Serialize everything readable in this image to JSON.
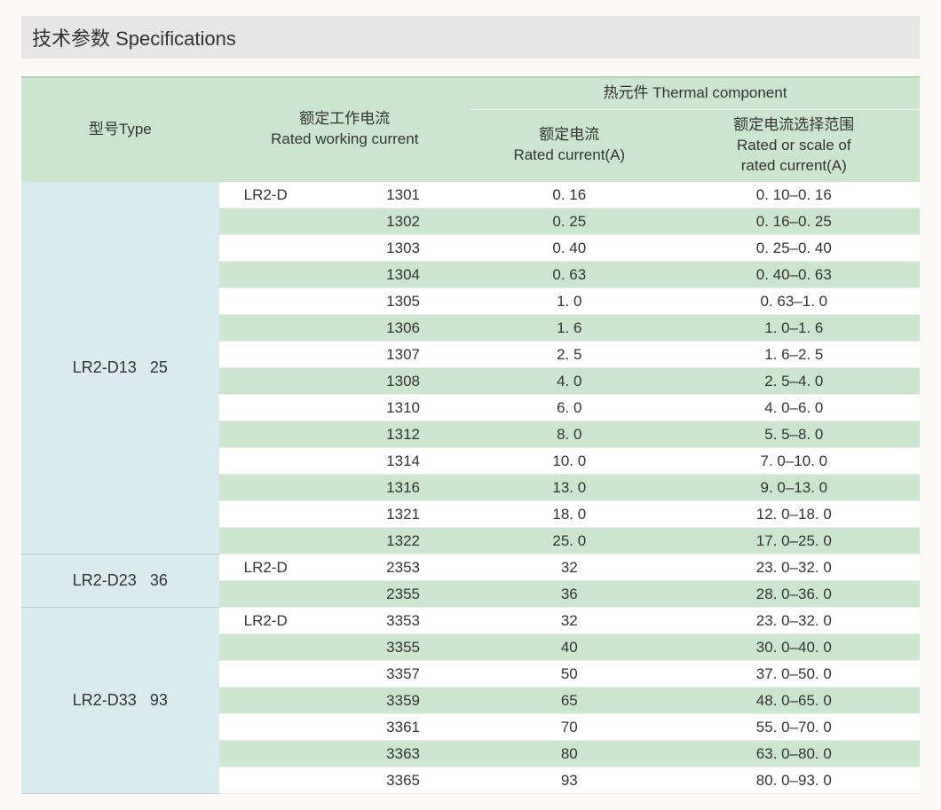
{
  "title": "技术参数 Specifications",
  "headers": {
    "type": "型号Type",
    "working_current_cn": "额定工作电流",
    "working_current_en": "Rated working current",
    "thermal_top": "热元件 Thermal component",
    "rated_current_cn": "额定电流",
    "rated_current_en": "Rated current(A)",
    "range_cn": "额定电流选择范围",
    "range_en_1": "Rated or scale of",
    "range_en_2": "rated current(A)"
  },
  "colors": {
    "header_bg": "#cbe5cf",
    "type_bg": "#d9ebef",
    "stripe_bg": "#cbe5cf",
    "page_bg": "#faf9f6",
    "title_bg": "#e6e6e6",
    "text": "#333333"
  },
  "groups": [
    {
      "type_model": "LR2-D13",
      "type_current": "25",
      "prefix": "LR2-D",
      "rows": [
        {
          "code": "1301",
          "rated": "0. 16",
          "range": "0. 10–0. 16"
        },
        {
          "code": "1302",
          "rated": "0. 25",
          "range": "0. 16–0. 25"
        },
        {
          "code": "1303",
          "rated": "0. 40",
          "range": "0. 25–0. 40"
        },
        {
          "code": "1304",
          "rated": "0. 63",
          "range": "0. 40–0. 63"
        },
        {
          "code": "1305",
          "rated": "1. 0",
          "range": "0. 63–1. 0"
        },
        {
          "code": "1306",
          "rated": "1. 6",
          "range": "1. 0–1. 6"
        },
        {
          "code": "1307",
          "rated": "2. 5",
          "range": "1. 6–2. 5"
        },
        {
          "code": "1308",
          "rated": "4. 0",
          "range": "2. 5–4. 0"
        },
        {
          "code": "1310",
          "rated": "6. 0",
          "range": "4. 0–6. 0"
        },
        {
          "code": "1312",
          "rated": "8. 0",
          "range": "5. 5–8. 0"
        },
        {
          "code": "1314",
          "rated": "10. 0",
          "range": "7. 0–10. 0"
        },
        {
          "code": "1316",
          "rated": "13. 0",
          "range": "9. 0–13. 0"
        },
        {
          "code": "1321",
          "rated": "18. 0",
          "range": "12. 0–18. 0"
        },
        {
          "code": "1322",
          "rated": "25. 0",
          "range": "17. 0–25. 0"
        }
      ]
    },
    {
      "type_model": "LR2-D23",
      "type_current": "36",
      "prefix": "LR2-D",
      "rows": [
        {
          "code": "2353",
          "rated": "32",
          "range": "23. 0–32. 0"
        },
        {
          "code": "2355",
          "rated": "36",
          "range": "28. 0–36. 0"
        }
      ]
    },
    {
      "type_model": "LR2-D33",
      "type_current": "93",
      "prefix": "LR2-D",
      "rows": [
        {
          "code": "3353",
          "rated": "32",
          "range": "23. 0–32. 0"
        },
        {
          "code": "3355",
          "rated": "40",
          "range": "30. 0–40. 0"
        },
        {
          "code": "3357",
          "rated": "50",
          "range": "37. 0–50. 0"
        },
        {
          "code": "3359",
          "rated": "65",
          "range": "48. 0–65. 0"
        },
        {
          "code": "3361",
          "rated": "70",
          "range": "55. 0–70. 0"
        },
        {
          "code": "3363",
          "rated": "80",
          "range": "63. 0–80. 0"
        },
        {
          "code": "3365",
          "rated": "93",
          "range": "80. 0–93. 0"
        }
      ]
    }
  ]
}
